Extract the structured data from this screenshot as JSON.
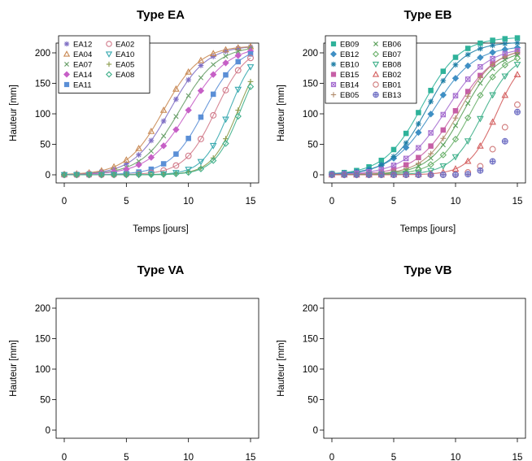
{
  "chart_data": [
    {
      "type": "scatter",
      "title": "Type EA",
      "xlabel": "Temps [jours]",
      "ylabel": "Hauteur [mm]",
      "xlim": [
        0,
        15
      ],
      "ylim": [
        0,
        220
      ],
      "xticks": [
        "0",
        "5",
        "10",
        "15"
      ],
      "yticks": [
        "0",
        "50",
        "100",
        "150",
        "200"
      ],
      "legend_position": "top-left",
      "x": [
        0,
        1,
        2,
        3,
        4,
        5,
        6,
        7,
        8,
        9,
        10,
        11,
        12,
        13,
        14,
        15
      ],
      "series": [
        {
          "name": "EA12",
          "marker": "asterisk",
          "color": "#7f6fc4",
          "fit": {
            "K": 212,
            "r": 0.68,
            "t0": 8.5
          }
        },
        {
          "name": "EA04",
          "marker": "triangle",
          "color": "#c98a55",
          "fit": {
            "K": 212,
            "r": 0.68,
            "t0": 8.0
          }
        },
        {
          "name": "EA07",
          "marker": "cross",
          "color": "#6aa06a",
          "fit": {
            "K": 212,
            "r": 0.65,
            "t0": 9.3
          }
        },
        {
          "name": "EA14",
          "marker": "diamond",
          "color": "#c65fc6",
          "fit": {
            "K": 212,
            "r": 0.62,
            "t0": 10.0
          }
        },
        {
          "name": "EA11",
          "marker": "square",
          "color": "#5b8fd6",
          "fit": {
            "K": 212,
            "r": 0.72,
            "t0": 11.3
          }
        },
        {
          "name": "EA02",
          "marker": "circle",
          "color": "#d17a8a",
          "fit": {
            "K": 212,
            "r": 0.8,
            "t0": 12.2
          }
        },
        {
          "name": "EA10",
          "marker": "tri-down",
          "color": "#3aaab0",
          "fit": {
            "K": 212,
            "r": 0.95,
            "t0": 13.3
          }
        },
        {
          "name": "EA05",
          "marker": "plus",
          "color": "#8a9a4a",
          "fit": {
            "K": 212,
            "r": 0.95,
            "t0": 14.0
          }
        },
        {
          "name": "EA08",
          "marker": "diamond-open",
          "color": "#3fb08a",
          "fit": {
            "K": 212,
            "r": 0.95,
            "t0": 14.2
          }
        }
      ]
    },
    {
      "type": "scatter",
      "title": "Type EB",
      "xlabel": "Temps [jours]",
      "ylabel": "Hauteur [mm]",
      "xlim": [
        0,
        15
      ],
      "ylim": [
        0,
        220
      ],
      "xticks": [
        "0",
        "5",
        "10",
        "15"
      ],
      "yticks": [
        "0",
        "50",
        "100",
        "150",
        "200"
      ],
      "legend_position": "top-left",
      "x": [
        0,
        1,
        2,
        3,
        4,
        5,
        6,
        7,
        8,
        9,
        10,
        11,
        12,
        13,
        14,
        15
      ],
      "series": [
        {
          "name": "EB09",
          "marker": "square",
          "color": "#2fb29a",
          "fit": {
            "K": 226,
            "r": 0.65,
            "t0": 7.3
          }
        },
        {
          "name": "EB12",
          "marker": "diamond",
          "color": "#3f8fc4",
          "fit": {
            "K": 212,
            "r": 0.6,
            "t0": 8.2
          }
        },
        {
          "name": "EB10",
          "marker": "asterisk",
          "color": "#1f7fa6",
          "fit": {
            "K": 218,
            "r": 0.68,
            "t0": 7.7
          }
        },
        {
          "name": "EB15",
          "marker": "square",
          "color": "#c65fa6",
          "fit": {
            "K": 210,
            "r": 0.62,
            "t0": 10.0
          }
        },
        {
          "name": "EB14",
          "marker": "square-x",
          "color": "#a66fd0",
          "fit": {
            "K": 210,
            "r": 0.6,
            "t0": 9.2
          }
        },
        {
          "name": "EB05",
          "marker": "plus",
          "color": "#b08a6a",
          "fit": {
            "K": 208,
            "r": 0.7,
            "t0": 10.3
          }
        },
        {
          "name": "EB06",
          "marker": "cross",
          "color": "#5aa05a",
          "fit": {
            "K": 205,
            "r": 0.72,
            "t0": 10.6
          }
        },
        {
          "name": "EB07",
          "marker": "diamond-open",
          "color": "#6ab06a",
          "fit": {
            "K": 202,
            "r": 0.75,
            "t0": 11.2
          }
        },
        {
          "name": "EB08",
          "marker": "tri-down",
          "color": "#3fb08a",
          "fit": {
            "K": 200,
            "r": 0.8,
            "t0": 12.2
          }
        },
        {
          "name": "EB02",
          "marker": "triangle",
          "color": "#d45f5f",
          "fit": {
            "K": 200,
            "r": 0.9,
            "t0": 13.3
          }
        },
        {
          "name": "EB01",
          "marker": "circle",
          "color": "#d07a7a",
          "fit": null
        },
        {
          "name": "EB13",
          "marker": "circle-plus",
          "color": "#6f6fc4",
          "fit": null
        }
      ],
      "raw_points": {
        "EB01": [
          [
            10,
            1
          ],
          [
            11,
            4
          ],
          [
            12,
            14
          ],
          [
            13,
            42
          ],
          [
            14,
            78
          ],
          [
            15,
            115
          ]
        ],
        "EB13": [
          [
            10,
            0
          ],
          [
            11,
            1
          ],
          [
            12,
            7
          ],
          [
            13,
            22
          ],
          [
            14,
            55
          ],
          [
            15,
            103
          ]
        ]
      }
    },
    {
      "type": "scatter",
      "title": "Type VA",
      "xlabel": "",
      "ylabel": "Hauteur [mm]",
      "xlim": [
        0,
        15
      ],
      "ylim": [
        0,
        220
      ],
      "xticks": [
        "0",
        "5",
        "10",
        "15"
      ],
      "yticks": [
        "0",
        "50",
        "100",
        "150",
        "200"
      ],
      "series": []
    },
    {
      "type": "scatter",
      "title": "Type VB",
      "xlabel": "",
      "ylabel": "Hauteur [mm]",
      "xlim": [
        0,
        15
      ],
      "ylim": [
        0,
        220
      ],
      "xticks": [
        "0",
        "5",
        "10",
        "15"
      ],
      "yticks": [
        "0",
        "50",
        "100",
        "150",
        "200"
      ],
      "series": []
    }
  ]
}
